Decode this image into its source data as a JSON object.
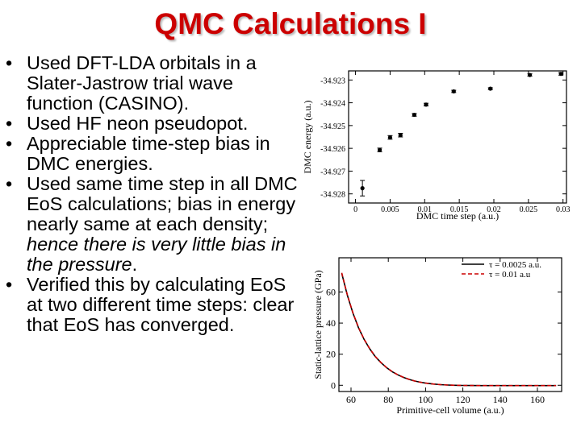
{
  "slide": {
    "title": "QMC Calculations I",
    "bullet_char": "•",
    "bullets": [
      {
        "parts": [
          {
            "text": "Used DFT-LDA orbitals in a Slater-Jastrow trial wave function (CASINO).",
            "italic": false
          }
        ]
      },
      {
        "parts": [
          {
            "text": "Used HF neon pseudopot.",
            "italic": false
          }
        ]
      },
      {
        "parts": [
          {
            "text": "Appreciable time-step bias in DMC energies.",
            "italic": false
          }
        ]
      },
      {
        "parts": [
          {
            "text": "Used same time step in all DMC EoS calculations; bias in energy nearly same at each density; ",
            "italic": false
          },
          {
            "text": "hence there is very little bias in the pressure",
            "italic": true
          },
          {
            "text": ".",
            "italic": false
          }
        ]
      },
      {
        "parts": [
          {
            "text": "Verified this by calculating EoS at two different time steps: clear that EoS has converged.",
            "italic": false
          }
        ]
      }
    ]
  },
  "chart_data": [
    {
      "type": "scatter",
      "xlabel": "DMC time step (a.u.)",
      "ylabel": "DMC energy (a.u.)",
      "xlim": [
        -0.001,
        0.0305
      ],
      "ylim": [
        -34.9284,
        -34.9226
      ],
      "xticks": [
        0,
        0.005,
        0.01,
        0.015,
        0.02,
        0.025,
        0.03
      ],
      "xtick_labels": [
        "0",
        "0.005",
        "0.01",
        "0.015",
        "0.02",
        "0.025",
        "0.03"
      ],
      "yticks": [
        -34.928,
        -34.927,
        -34.926,
        -34.925,
        -34.924,
        -34.923
      ],
      "ytick_labels": [
        "-34.928",
        "-34.927",
        "-34.926",
        "-34.925",
        "-34.924",
        "-34.923"
      ],
      "series": [
        {
          "x": [
            0.001,
            0.0035,
            0.005,
            0.0065,
            0.0085,
            0.0102,
            0.0142,
            0.0195,
            0.0252,
            0.0297
          ],
          "y": [
            -34.92775,
            -34.92607,
            -34.92552,
            -34.92542,
            -34.92453,
            -34.92408,
            -34.9235,
            -34.92338,
            -34.92278,
            -34.92273
          ],
          "err": [
            0.00034,
            8e-05,
            8e-05,
            8e-05,
            6e-05,
            6e-05,
            5e-05,
            4e-05,
            5e-05,
            6e-05
          ]
        }
      ],
      "color": "#000000"
    },
    {
      "type": "line",
      "xlabel": "Primitive-cell volume (a.u.)",
      "ylabel": "Static-lattice pressure (GPa)",
      "xlim": [
        53.5,
        173
      ],
      "ylim": [
        -4,
        82
      ],
      "xticks": [
        60,
        80,
        100,
        120,
        140,
        160
      ],
      "xtick_labels": [
        "60",
        "80",
        "100",
        "120",
        "140",
        "160"
      ],
      "yticks": [
        0,
        20,
        40,
        60
      ],
      "ytick_labels": [
        "0",
        "20",
        "40",
        "60"
      ],
      "legend_position": "top-right",
      "series": [
        {
          "name": "τ = 0.0025 a.u.",
          "color": "#000000",
          "dash": false,
          "x": [
            55,
            58,
            61,
            64,
            67,
            70,
            73,
            76,
            79,
            82,
            85,
            88,
            91,
            94,
            97,
            100,
            104,
            108,
            112,
            116,
            120,
            125,
            130,
            140,
            150,
            160,
            170
          ],
          "y": [
            72,
            58,
            46.5,
            37,
            29.5,
            23.5,
            18.5,
            14.6,
            11.4,
            8.8,
            6.8,
            5.1,
            3.8,
            2.8,
            2.0,
            1.4,
            0.8,
            0.4,
            0.15,
            0.0,
            -0.1,
            -0.15,
            -0.2,
            -0.2,
            -0.2,
            -0.2,
            -0.2
          ]
        },
        {
          "name": "τ = 0.01 a.u",
          "color": "#cc0000",
          "dash": true,
          "x": [
            55,
            58,
            61,
            64,
            67,
            70,
            73,
            76,
            79,
            82,
            85,
            88,
            91,
            94,
            97,
            100,
            104,
            108,
            112,
            116,
            120,
            125,
            130,
            140,
            150,
            160,
            170
          ],
          "y": [
            72.3,
            58.2,
            46.7,
            37.2,
            29.6,
            23.6,
            18.6,
            14.7,
            11.5,
            8.9,
            6.8,
            5.2,
            3.9,
            2.8,
            2.0,
            1.4,
            0.8,
            0.4,
            0.15,
            0.0,
            -0.1,
            -0.15,
            -0.2,
            -0.2,
            -0.2,
            -0.2,
            -0.2
          ]
        }
      ]
    }
  ]
}
